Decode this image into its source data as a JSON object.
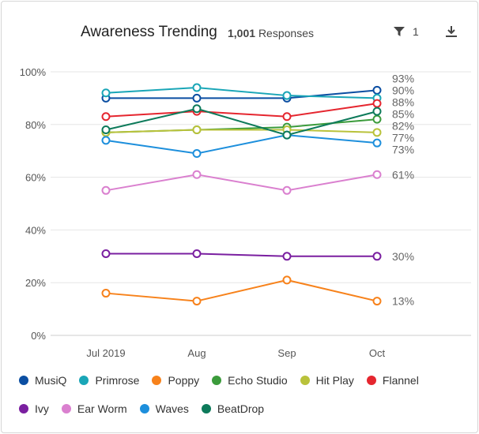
{
  "header": {
    "title": "Awareness Trending",
    "responses_count": "1,001",
    "responses_label": "Responses",
    "filter_count": "1",
    "filter_icon": "filter-icon",
    "download_icon": "download-icon"
  },
  "chart_data": {
    "type": "line",
    "title": "Awareness Trending",
    "categories": [
      "Jul 2019",
      "Aug",
      "Sep",
      "Oct"
    ],
    "ylim": [
      0,
      100
    ],
    "yticks": [
      "0%",
      "20%",
      "40%",
      "60%",
      "80%",
      "100%"
    ],
    "grid": true,
    "legend_placement": "bottom",
    "series": [
      {
        "name": "MusiQ",
        "color": "#0b4ea2",
        "values": [
          90,
          90,
          90,
          93
        ],
        "end_label": "93%"
      },
      {
        "name": "Primrose",
        "color": "#1aa6b7",
        "values": [
          92,
          94,
          91,
          90
        ],
        "end_label": "90%"
      },
      {
        "name": "Poppy",
        "color": "#f7821b",
        "values": [
          16,
          13,
          21,
          13
        ],
        "end_label": "13%"
      },
      {
        "name": "Echo Studio",
        "color": "#3b9b3b",
        "values": [
          77,
          78,
          79,
          82
        ],
        "end_label": "82%"
      },
      {
        "name": "Hit Play",
        "color": "#b9c23b",
        "values": [
          77,
          78,
          78,
          77
        ],
        "end_label": "77%"
      },
      {
        "name": "Flannel",
        "color": "#e5262f",
        "values": [
          83,
          85,
          83,
          88
        ],
        "end_label": "88%"
      },
      {
        "name": "Ivy",
        "color": "#7a1fa0",
        "values": [
          31,
          31,
          30,
          30
        ],
        "end_label": "30%"
      },
      {
        "name": "Ear Worm",
        "color": "#da80cf",
        "values": [
          55,
          61,
          55,
          61
        ],
        "end_label": "61%"
      },
      {
        "name": "Waves",
        "color": "#1d8fdc",
        "values": [
          74,
          69,
          76,
          73
        ],
        "end_label": "73%"
      },
      {
        "name": "BeatDrop",
        "color": "#0d7a5a",
        "values": [
          78,
          86,
          76,
          85
        ],
        "end_label": "85%"
      }
    ]
  }
}
